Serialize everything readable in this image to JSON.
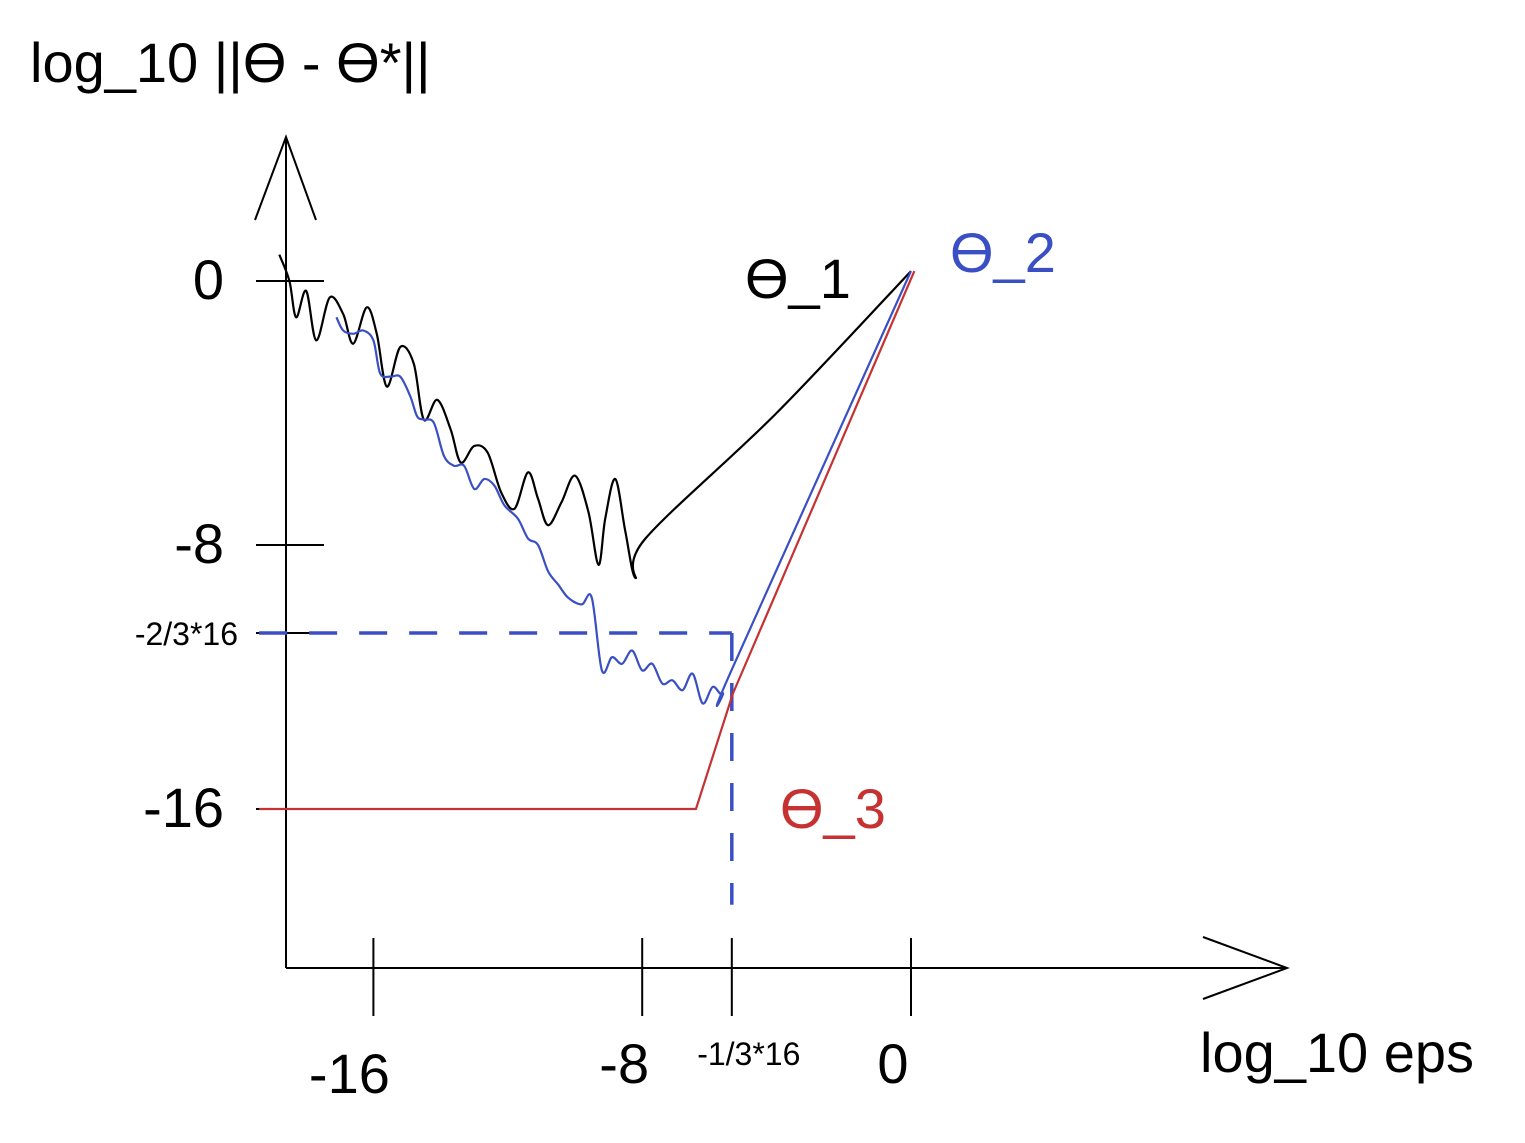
{
  "chart_data": {
    "type": "line",
    "title": "",
    "ylabel": "log_10 ||ϴ - ϴ*||",
    "xlabel": "log_10 eps",
    "xlim": [
      -19.5,
      14
    ],
    "ylim": [
      -19,
      8
    ],
    "x_ticks": [
      {
        "value": -16,
        "label": "-16"
      },
      {
        "value": -8,
        "label": "-8"
      },
      {
        "value": -5.333,
        "label": "-1/3*16"
      },
      {
        "value": 0,
        "label": "0"
      }
    ],
    "y_ticks": [
      {
        "value": 0,
        "label": "0"
      },
      {
        "value": -8,
        "label": "-8"
      },
      {
        "value": -10.667,
        "label": "-2/3*16"
      },
      {
        "value": -16,
        "label": "-16"
      }
    ],
    "series": [
      {
        "name": "ϴ_1",
        "color": "#000000",
        "x": [
          -18.8,
          -18.5,
          -18.3,
          -18.0,
          -17.7,
          -17.3,
          -16.9,
          -16.6,
          -16.2,
          -15.9,
          -15.6,
          -15.2,
          -14.8,
          -14.5,
          -14.1,
          -13.7,
          -13.4,
          -13.0,
          -12.6,
          -12.2,
          -11.8,
          -11.4,
          -11.1,
          -10.8,
          -10.4,
          -10.0,
          -9.6,
          -9.3,
          -9.1,
          -8.8,
          -8.5,
          -8.2,
          -7.9,
          -4.0,
          0.0
        ],
        "y": [
          0.8,
          0.0,
          -1.1,
          -0.3,
          -1.8,
          -0.5,
          -1.0,
          -1.9,
          -0.8,
          -1.6,
          -3.2,
          -2.0,
          -2.5,
          -4.2,
          -3.6,
          -4.5,
          -5.5,
          -5.0,
          -5.2,
          -6.4,
          -6.9,
          -5.8,
          -6.6,
          -7.4,
          -6.7,
          -5.9,
          -7.0,
          -8.6,
          -7.2,
          -6.0,
          -7.6,
          -9.0,
          -7.8,
          -4.0,
          0.3
        ]
      },
      {
        "name": "ϴ_2",
        "color": "#3a4fc4",
        "x": [
          -17.1,
          -16.9,
          -16.6,
          -16.3,
          -16.0,
          -15.8,
          -15.5,
          -15.2,
          -14.9,
          -14.7,
          -14.5,
          -14.2,
          -13.9,
          -13.6,
          -13.3,
          -13.0,
          -12.7,
          -12.4,
          -12.1,
          -11.7,
          -11.4,
          -11.1,
          -10.8,
          -10.5,
          -10.2,
          -9.8,
          -9.5,
          -9.2,
          -8.9,
          -8.6,
          -8.3,
          -8.0,
          -7.7,
          -7.4,
          -7.1,
          -6.8,
          -6.5,
          -6.2,
          -5.9,
          -5.6,
          -5.3,
          0.0
        ],
        "y": [
          -1.1,
          -1.5,
          -1.6,
          -1.5,
          -1.8,
          -2.8,
          -2.9,
          -2.9,
          -3.5,
          -4.1,
          -4.2,
          -4.3,
          -5.3,
          -5.6,
          -5.6,
          -6.3,
          -6.0,
          -6.2,
          -6.8,
          -7.2,
          -7.8,
          -8.0,
          -8.8,
          -9.2,
          -9.6,
          -9.8,
          -9.6,
          -11.8,
          -11.4,
          -11.6,
          -11.2,
          -11.8,
          -11.6,
          -12.2,
          -12.1,
          -12.4,
          -11.9,
          -12.8,
          -12.3,
          -12.5,
          -11.7,
          0.3
        ]
      },
      {
        "name": "ϴ_3",
        "color": "#c63232",
        "x": [
          -19.4,
          -6.4,
          -5.3,
          0.1
        ],
        "y": [
          -16.0,
          -16.0,
          -12.5,
          0.3
        ]
      }
    ],
    "annotations": [
      {
        "type": "dashed-line",
        "color": "#3a4fc4",
        "from": [
          -19.4,
          -10.667
        ],
        "to": [
          -5.333,
          -10.667
        ]
      },
      {
        "type": "dashed-line",
        "color": "#3a4fc4",
        "from": [
          -5.333,
          -10.667
        ],
        "to": [
          -5.333,
          -18.9
        ]
      }
    ],
    "grid": false,
    "legend": "none"
  }
}
